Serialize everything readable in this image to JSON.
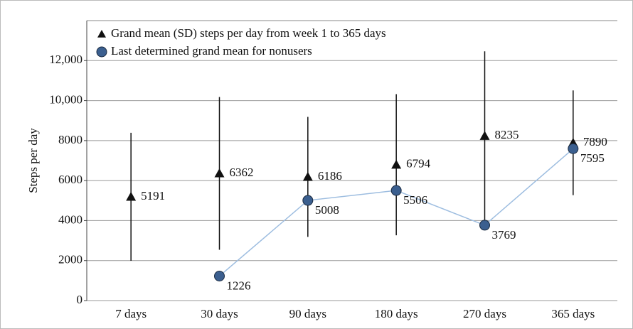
{
  "chart_data": {
    "type": "line",
    "y_label": "Steps per day",
    "categories": [
      "7 days",
      "30 days",
      "90 days",
      "180 days",
      "270 days",
      "365 days"
    ],
    "series": [
      {
        "name": "Grand mean (SD) steps per day from week 1 to 365 days",
        "color": "#111111",
        "marker": "triangle",
        "values": [
          5191,
          6362,
          6186,
          6794,
          8235,
          7890
        ],
        "errors": [
          3200,
          3820,
          3000,
          3530,
          4230,
          2620
        ]
      },
      {
        "name": "Last determined grand mean for nonusers",
        "color": "#3b5f8f",
        "line_color": "#9dbde0",
        "label_color": "#5b86c0",
        "marker": "circle",
        "values": [
          null,
          1226,
          5008,
          5506,
          3769,
          7595
        ]
      }
    ],
    "ylim": [
      0,
      14000
    ],
    "yticks": [
      0,
      2000,
      4000,
      6000,
      8000,
      {
        "value": 10000,
        "label": "10,000"
      },
      {
        "value": 12000,
        "label": "12,000"
      }
    ],
    "grid": true
  }
}
